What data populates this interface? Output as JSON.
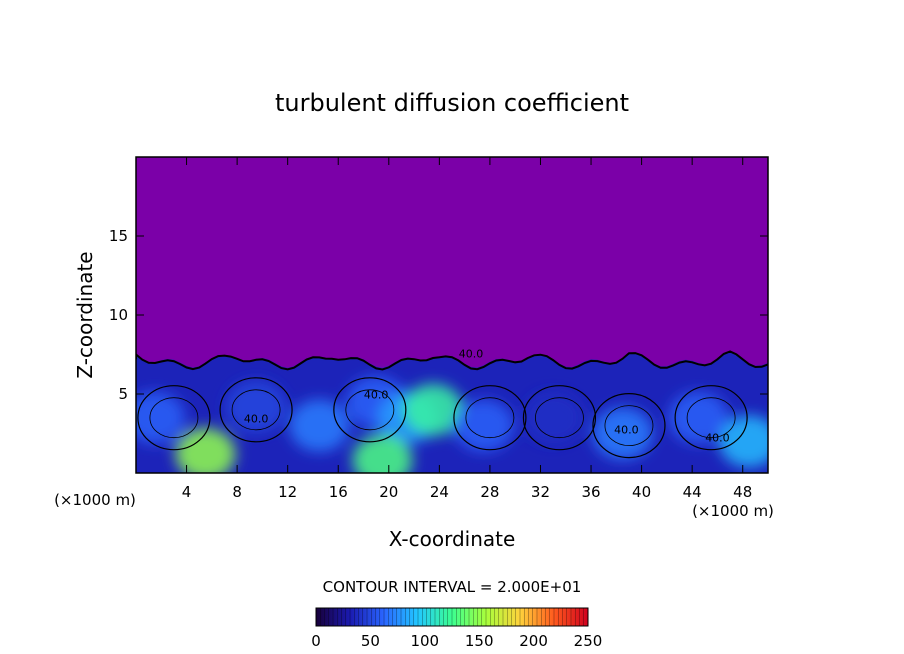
{
  "chart_data": {
    "type": "heatmap",
    "title": "turbulent diffusion coefficient",
    "xlabel": "X-coordinate",
    "ylabel": "Z-coordinate",
    "x_unit_left": "(×1000 m)",
    "x_unit_right": "(×1000 m)",
    "xlim": [
      0,
      50
    ],
    "ylim": [
      0,
      20
    ],
    "x_ticks": [
      4,
      8,
      12,
      16,
      20,
      24,
      28,
      32,
      36,
      40,
      44,
      48
    ],
    "y_ticks": [
      5,
      10,
      15
    ],
    "contour_interval_text": "CONTOUR INTERVAL = 2.000E+01",
    "contour_labels": [
      "40.0",
      "40.0",
      "40.0",
      "40.0",
      "40.0"
    ],
    "colorbar": {
      "min": 0,
      "max": 250,
      "ticks": [
        0,
        50,
        100,
        150,
        200,
        250
      ],
      "colors": [
        "#18003a",
        "#1a1ab0",
        "#2a66ff",
        "#22c8ff",
        "#3cff90",
        "#a8ff3c",
        "#ffd23c",
        "#ff5a1e",
        "#d0001e"
      ]
    },
    "background_value_color": "#7b00a8",
    "turbulent_layer_top": 7.5,
    "eddies": [
      {
        "x": 1.5,
        "z": 3.5,
        "value": 60
      },
      {
        "x": 5.5,
        "z": 1.2,
        "value": 150
      },
      {
        "x": 9.5,
        "z": 4.2,
        "value": 50
      },
      {
        "x": 14.5,
        "z": 3.0,
        "value": 70
      },
      {
        "x": 19.0,
        "z": 4.5,
        "value": 60
      },
      {
        "x": 21.5,
        "z": 3.5,
        "value": 80
      },
      {
        "x": 23.5,
        "z": 4.0,
        "value": 120
      },
      {
        "x": 19.5,
        "z": 0.8,
        "value": 130
      },
      {
        "x": 27.5,
        "z": 3.0,
        "value": 60
      },
      {
        "x": 33.0,
        "z": 3.5,
        "value": 40
      },
      {
        "x": 38.5,
        "z": 2.5,
        "value": 70
      },
      {
        "x": 44.5,
        "z": 3.5,
        "value": 60
      },
      {
        "x": 48.5,
        "z": 2.0,
        "value": 90
      }
    ]
  }
}
